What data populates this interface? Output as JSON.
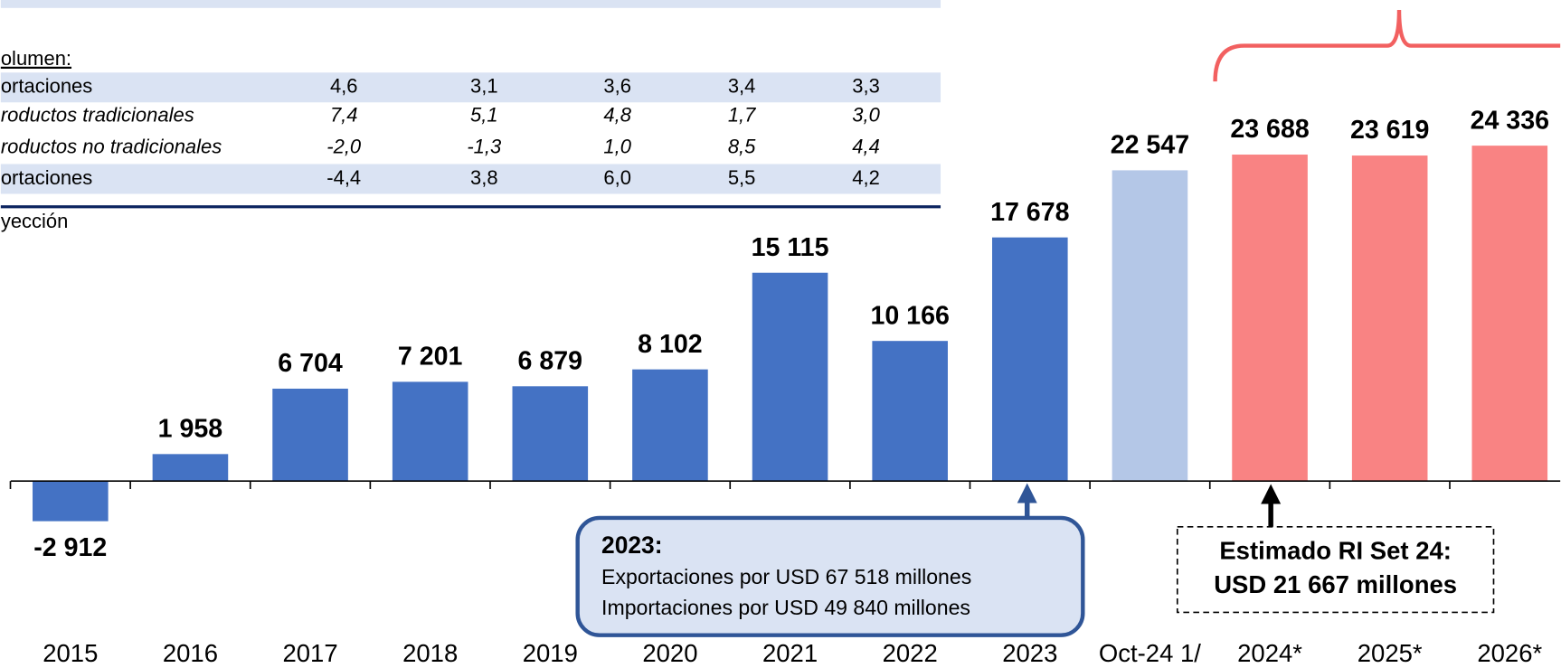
{
  "table": {
    "section": "olumen:",
    "rows": [
      [
        "ortaciones",
        "4,6",
        "3,1",
        "3,6",
        "3,4",
        "3,3"
      ],
      [
        "roductos tradicionales",
        "7,4",
        "5,1",
        "4,8",
        "1,7",
        "3,0"
      ],
      [
        "roductos no tradicionales",
        "-2,0",
        "-1,3",
        "1,0",
        "8,5",
        "4,4"
      ],
      [
        "ortaciones",
        "-4,4",
        "3,8",
        "6,0",
        "5,5",
        "4,2"
      ]
    ],
    "footnote": "yección"
  },
  "chart_data": {
    "type": "bar",
    "categories": [
      "2015",
      "2016",
      "2017",
      "2018",
      "2019",
      "2020",
      "2021",
      "2022",
      "2023",
      "Oct-24 1/",
      "2024*",
      "2025*",
      "2026*"
    ],
    "values": [
      -2912,
      1958,
      6704,
      7201,
      6879,
      8102,
      15115,
      10166,
      17678,
      22547,
      23688,
      23619,
      24336
    ],
    "value_labels": [
      "-2 912",
      "1 958",
      "6 704",
      "7 201",
      "6 879",
      "8 102",
      "15 115",
      "10 166",
      "17 678",
      "22 547",
      "23 688",
      "23 619",
      "24 336"
    ],
    "colors": [
      "#4472c4",
      "#4472c4",
      "#4472c4",
      "#4472c4",
      "#4472c4",
      "#4472c4",
      "#4472c4",
      "#4472c4",
      "#4472c4",
      "#b4c7e7",
      "#f98383",
      "#f98383",
      "#f98383"
    ],
    "ylim": [
      -4000,
      30000
    ],
    "annotations": {
      "box_title": "2023:",
      "box_line1": "Exportaciones por USD 67 518 millones",
      "box_line2": "Importaciones por USD 49 840  millones",
      "estimate_line1": "Estimado RI Set 24:",
      "estimate_line2": "USD 21 667 millones"
    }
  }
}
